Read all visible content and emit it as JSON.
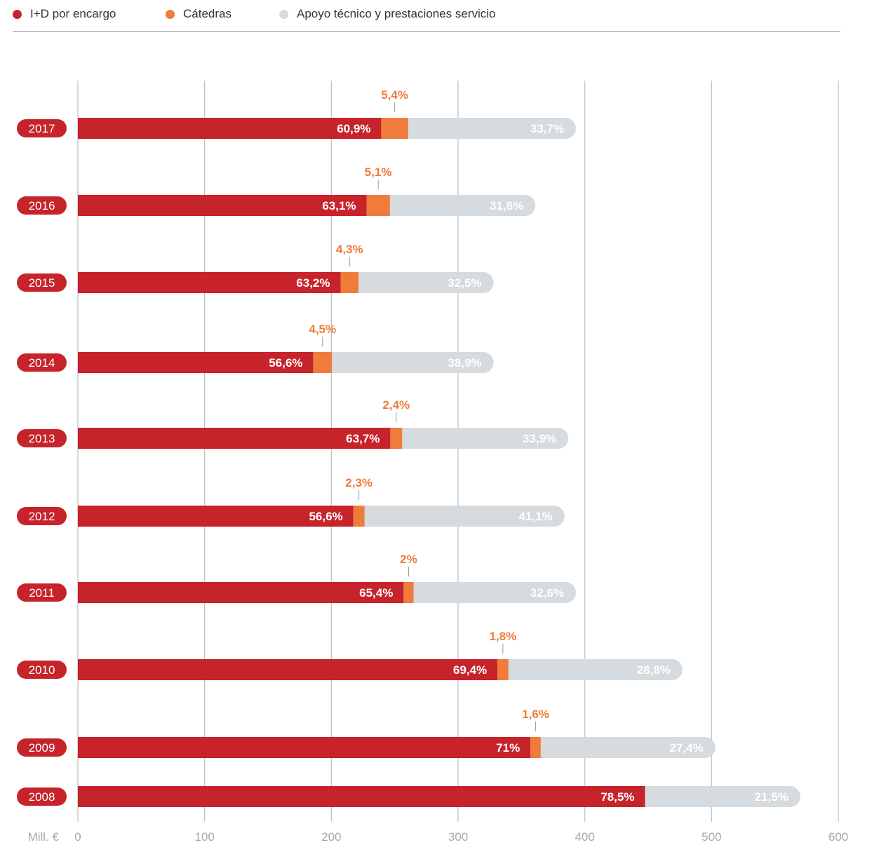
{
  "legend": {
    "items": [
      {
        "label": "I+D por encargo",
        "color": "#c6232b"
      },
      {
        "label": "Cátedras",
        "color": "#f07c3c"
      },
      {
        "label": "Apoyo técnico y prestaciones servicio",
        "color": "#d5dbde"
      }
    ]
  },
  "chart_data": {
    "type": "bar",
    "orientation": "horizontal",
    "stacked": true,
    "x_unit_label": "Mill. €",
    "xlim": [
      0,
      600
    ],
    "x_ticks": [
      0,
      100,
      200,
      300,
      400,
      500,
      600
    ],
    "grid": true,
    "legend_position": "top-left",
    "categories": [
      "2017",
      "2016",
      "2015",
      "2014",
      "2013",
      "2012",
      "2011",
      "2010",
      "2009",
      "2008"
    ],
    "totals": [
      393,
      361,
      328,
      328,
      387,
      384,
      393,
      477,
      503,
      570
    ],
    "series": [
      {
        "name": "I+D por encargo",
        "color": "#c6232b",
        "labels": [
          "60,9%",
          "63,1%",
          "63,2%",
          "56,6%",
          "63,7%",
          "56,6%",
          "65,4%",
          "69,4%",
          "71%",
          "78,5%"
        ],
        "percent": [
          60.9,
          63.1,
          63.2,
          56.6,
          63.7,
          56.6,
          65.4,
          69.4,
          71.0,
          78.5
        ]
      },
      {
        "name": "Cátedras",
        "color": "#f07c3c",
        "labels": [
          "5,4%",
          "5,1%",
          "4,3%",
          "4,5%",
          "2,4%",
          "2,3%",
          "2%",
          "1,8%",
          "1,6%",
          ""
        ],
        "percent": [
          5.4,
          5.1,
          4.3,
          4.5,
          2.4,
          2.3,
          2.0,
          1.8,
          1.6,
          0
        ]
      },
      {
        "name": "Apoyo técnico y prestaciones servicio",
        "color": "#d5dbde",
        "labels": [
          "33,7%",
          "31,8%",
          "32,5%",
          "38,9%",
          "33,9%",
          "41,1%",
          "32,6%",
          "28,8%",
          "27,4%",
          "21,5%"
        ],
        "percent": [
          33.7,
          31.8,
          32.5,
          38.9,
          33.9,
          41.1,
          32.6,
          28.8,
          27.4,
          21.5
        ]
      }
    ]
  }
}
